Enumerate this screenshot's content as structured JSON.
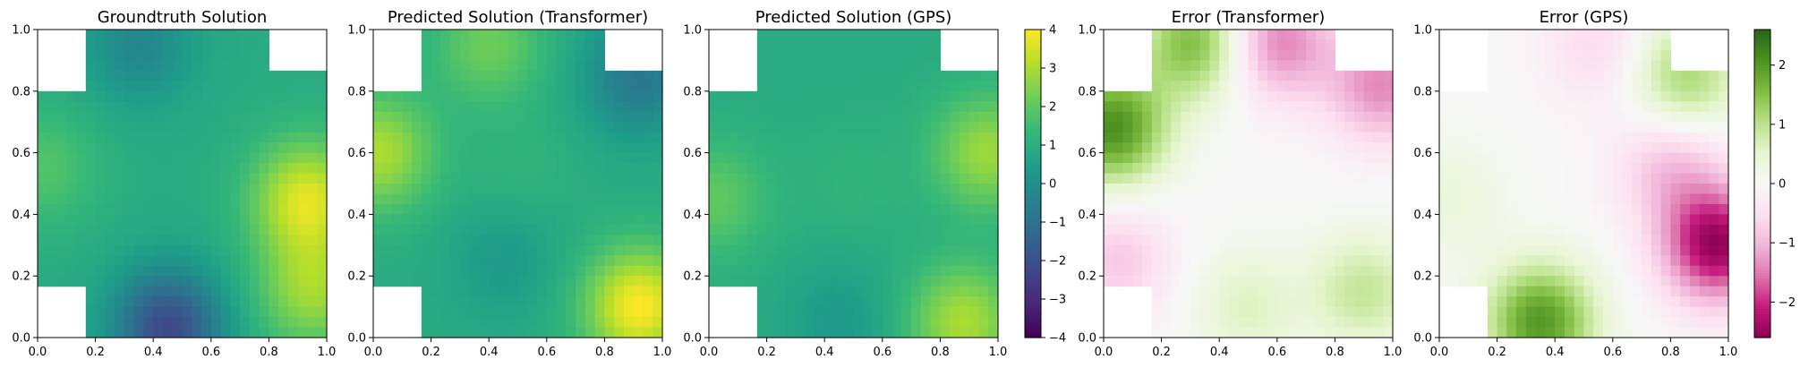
{
  "chart_data": [
    {
      "type": "heatmap",
      "title": "Groundtruth Solution",
      "colormap": "viridis",
      "shared_colorbar": "solution",
      "xlim": [
        0.0,
        1.0
      ],
      "ylim": [
        0.0,
        1.0
      ],
      "xticks": [
        "0.0",
        "0.2",
        "0.4",
        "0.6",
        "0.8",
        "1.0"
      ],
      "yticks": [
        "0.0",
        "0.2",
        "0.4",
        "0.6",
        "0.8",
        "1.0"
      ],
      "masked_corners": [
        "top-left",
        "top-right",
        "bottom-left"
      ],
      "features": [
        {
          "x": 0.93,
          "y": 0.45,
          "value": 3.6
        },
        {
          "x": 0.95,
          "y": 0.15,
          "value": 2.8
        },
        {
          "x": 0.45,
          "y": 0.03,
          "value": -2.2
        },
        {
          "x": 0.35,
          "y": 0.95,
          "value": -0.3
        },
        {
          "x": 0.02,
          "y": 0.55,
          "value": 1.8
        },
        {
          "x": 0.5,
          "y": 0.5,
          "value": 0.9
        }
      ]
    },
    {
      "type": "heatmap",
      "title": "Predicted Solution (Transformer)",
      "colormap": "viridis",
      "shared_colorbar": "solution",
      "xlim": [
        0.0,
        1.0
      ],
      "ylim": [
        0.0,
        1.0
      ],
      "xticks": [
        "0.0",
        "0.2",
        "0.4",
        "0.6",
        "0.8",
        "1.0"
      ],
      "yticks": [
        "0.0",
        "0.2",
        "0.4",
        "0.6",
        "0.8",
        "1.0"
      ],
      "masked_corners": [
        "top-left",
        "top-right",
        "bottom-left"
      ],
      "features": [
        {
          "x": 0.92,
          "y": 0.1,
          "value": 4.0
        },
        {
          "x": 0.02,
          "y": 0.6,
          "value": 3.0
        },
        {
          "x": 0.4,
          "y": 0.95,
          "value": 2.2
        },
        {
          "x": 0.92,
          "y": 0.85,
          "value": -0.8
        },
        {
          "x": 0.45,
          "y": 0.25,
          "value": 0.3
        },
        {
          "x": 0.5,
          "y": 0.55,
          "value": 1.2
        }
      ]
    },
    {
      "type": "heatmap",
      "title": "Predicted Solution (GPS)",
      "colormap": "viridis",
      "shared_colorbar": "solution",
      "xlim": [
        0.0,
        1.0
      ],
      "ylim": [
        0.0,
        1.0
      ],
      "xticks": [
        "0.0",
        "0.2",
        "0.4",
        "0.6",
        "0.8",
        "1.0"
      ],
      "yticks": [
        "0.0",
        "0.2",
        "0.4",
        "0.6",
        "0.8",
        "1.0"
      ],
      "masked_corners": [
        "top-left",
        "top-right",
        "bottom-left"
      ],
      "features": [
        {
          "x": 0.96,
          "y": 0.6,
          "value": 2.8
        },
        {
          "x": 0.88,
          "y": 0.05,
          "value": 3.0
        },
        {
          "x": 0.02,
          "y": 0.45,
          "value": 2.0
        },
        {
          "x": 0.45,
          "y": 0.05,
          "value": 0.3
        },
        {
          "x": 0.5,
          "y": 0.5,
          "value": 1.2
        }
      ]
    },
    {
      "type": "heatmap",
      "title": "Error (Transformer)",
      "colormap": "PiYG",
      "shared_colorbar": "error",
      "xlim": [
        0.0,
        1.0
      ],
      "ylim": [
        0.0,
        1.0
      ],
      "xticks": [
        "0.0",
        "0.2",
        "0.4",
        "0.6",
        "0.8",
        "1.0"
      ],
      "yticks": [
        "0.0",
        "0.2",
        "0.4",
        "0.6",
        "0.8",
        "1.0"
      ],
      "masked_corners": [
        "top-left",
        "top-right",
        "bottom-left"
      ],
      "features": [
        {
          "x": 0.03,
          "y": 0.68,
          "value": 2.1
        },
        {
          "x": 0.32,
          "y": 0.96,
          "value": 1.6
        },
        {
          "x": 0.6,
          "y": 0.96,
          "value": -1.5
        },
        {
          "x": 0.96,
          "y": 0.82,
          "value": -1.4
        },
        {
          "x": 0.05,
          "y": 0.25,
          "value": -0.8
        },
        {
          "x": 0.9,
          "y": 0.15,
          "value": 0.9
        },
        {
          "x": 0.5,
          "y": 0.1,
          "value": 0.6
        }
      ]
    },
    {
      "type": "heatmap",
      "title": "Error (GPS)",
      "colormap": "PiYG",
      "shared_colorbar": "error",
      "xlim": [
        0.0,
        1.0
      ],
      "ylim": [
        0.0,
        1.0
      ],
      "xticks": [
        "0.0",
        "0.2",
        "0.4",
        "0.6",
        "0.8",
        "1.0"
      ],
      "yticks": [
        "0.0",
        "0.2",
        "0.4",
        "0.6",
        "0.8",
        "1.0"
      ],
      "masked_corners": [
        "top-left",
        "top-right",
        "bottom-left"
      ],
      "features": [
        {
          "x": 0.96,
          "y": 0.3,
          "value": -2.5
        },
        {
          "x": 0.35,
          "y": 0.05,
          "value": 2.0
        },
        {
          "x": 0.85,
          "y": 0.85,
          "value": 1.2
        },
        {
          "x": 0.8,
          "y": 0.55,
          "value": -0.9
        },
        {
          "x": 0.55,
          "y": 0.95,
          "value": -0.6
        },
        {
          "x": 0.04,
          "y": 0.45,
          "value": 0.4
        }
      ]
    }
  ],
  "colorbars": [
    {
      "id": "solution",
      "colormap": "viridis",
      "range": [
        -4,
        4
      ],
      "ticks": [
        "4",
        "3",
        "2",
        "1",
        "0",
        "−1",
        "−2",
        "−3",
        "−4"
      ],
      "tick_values": [
        4,
        3,
        2,
        1,
        0,
        -1,
        -2,
        -3,
        -4
      ]
    },
    {
      "id": "error",
      "colormap": "PiYG",
      "range": [
        -2.6,
        2.6
      ],
      "ticks": [
        "2",
        "1",
        "0",
        "−1",
        "−2"
      ],
      "tick_values": [
        2,
        1,
        0,
        -1,
        -2
      ]
    }
  ]
}
